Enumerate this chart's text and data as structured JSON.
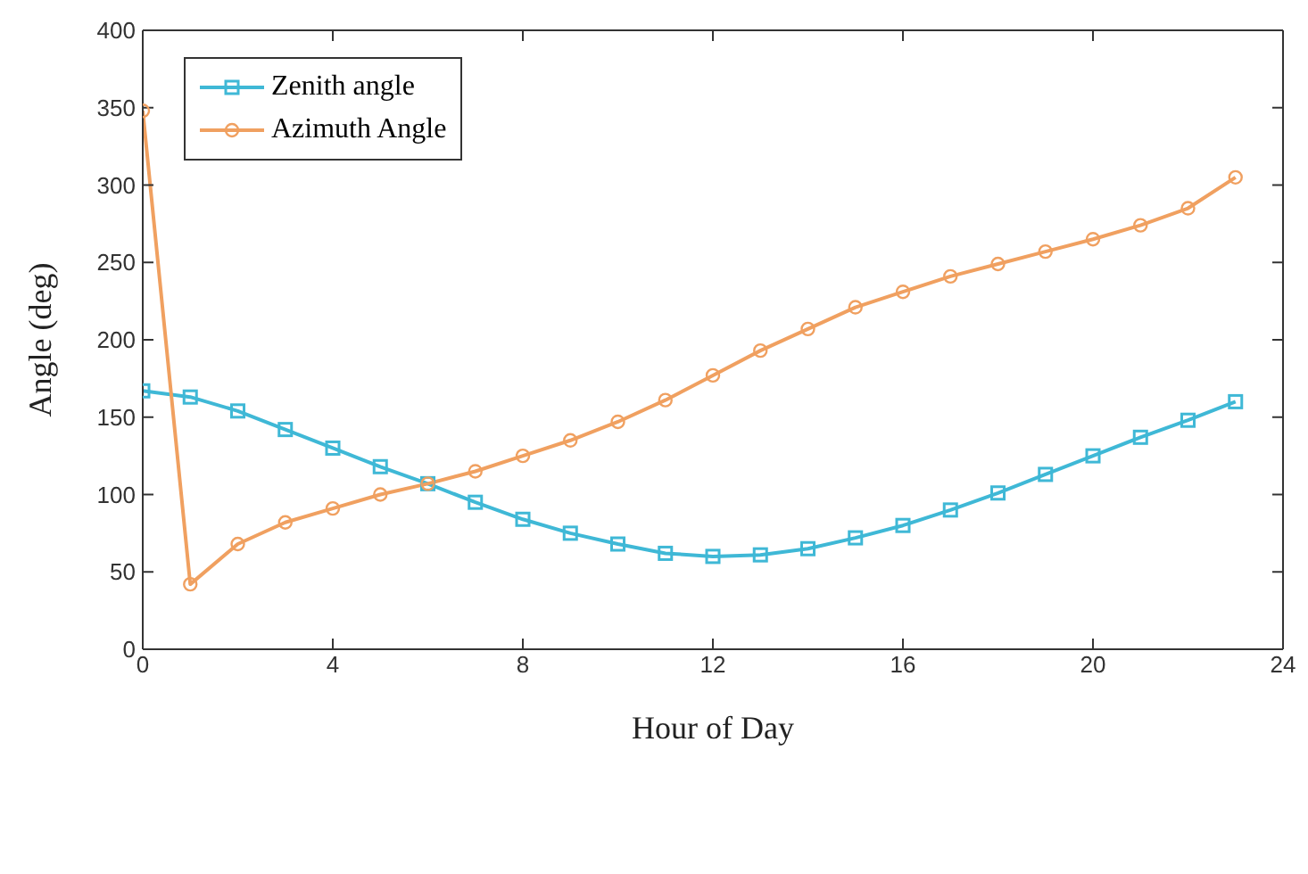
{
  "chart_data": {
    "type": "line",
    "xlabel": "Hour of Day",
    "ylabel": "Angle (deg)",
    "x": [
      0,
      1,
      2,
      3,
      4,
      5,
      6,
      7,
      8,
      9,
      10,
      11,
      12,
      13,
      14,
      15,
      16,
      17,
      18,
      19,
      20,
      21,
      22,
      23
    ],
    "series": [
      {
        "name": "Zenith angle",
        "color": "#3fb8d6",
        "marker": "square",
        "values": [
          167,
          163,
          154,
          142,
          130,
          118,
          107,
          95,
          84,
          75,
          68,
          62,
          60,
          61,
          65,
          72,
          80,
          90,
          101,
          113,
          125,
          137,
          148,
          160
        ]
      },
      {
        "name": "Azimuth Angle",
        "color": "#f0a060",
        "marker": "circle",
        "values": [
          348,
          42,
          68,
          82,
          91,
          100,
          107,
          115,
          125,
          135,
          147,
          161,
          177,
          193,
          207,
          221,
          231,
          241,
          249,
          257,
          265,
          274,
          285,
          305
        ]
      }
    ],
    "xlim": [
      0,
      24
    ],
    "xticks": [
      0,
      4,
      8,
      12,
      16,
      20,
      24
    ],
    "ylim": [
      0,
      400
    ],
    "yticks": [
      0,
      50,
      100,
      150,
      200,
      250,
      300,
      350,
      400
    ],
    "legend": "top left"
  }
}
